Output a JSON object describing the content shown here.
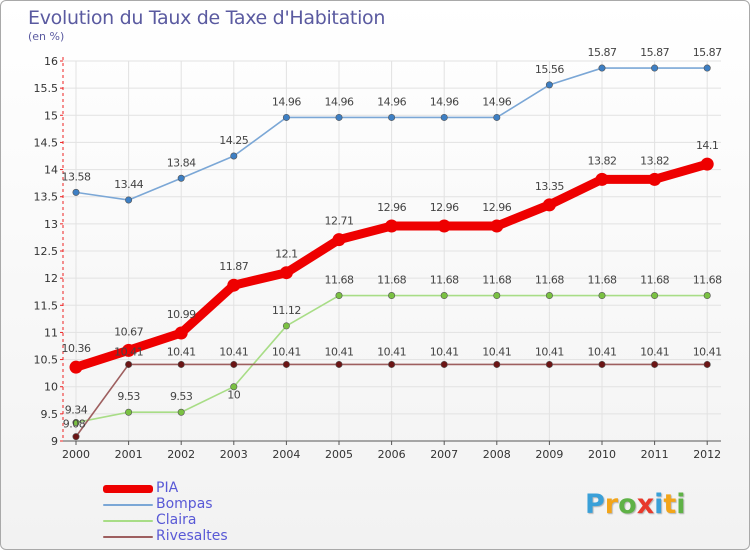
{
  "title": "Evolution du Taux de Taxe d'Habitation",
  "unit_label": "(en %)",
  "logo": {
    "letters": [
      "P",
      "r",
      "o",
      "x",
      "i",
      "t",
      "i"
    ],
    "colors": [
      "#3aa0d8",
      "#f2a51a",
      "#5fb246",
      "#e8392b",
      "#3aa0d8",
      "#f2a51a",
      "#5fb246"
    ]
  },
  "chart_data": {
    "type": "line",
    "title": "Evolution du Taux de Taxe d'Habitation",
    "ylabel": "(en %)",
    "xlabel": "",
    "ylim": [
      9,
      16
    ],
    "yticks": [
      "9",
      "9.5",
      "10",
      "10.5",
      "11",
      "11.5",
      "12",
      "12.5",
      "13",
      "13.5",
      "14",
      "14.5",
      "15",
      "15.5",
      "16"
    ],
    "ytick_values": [
      9,
      9.5,
      10,
      10.5,
      11,
      11.5,
      12,
      12.5,
      13,
      13.5,
      14,
      14.5,
      15,
      15.5,
      16
    ],
    "x": [
      "2000",
      "2001",
      "2002",
      "2003",
      "2004",
      "2005",
      "2006",
      "2007",
      "2008",
      "2009",
      "2010",
      "2011",
      "2012"
    ],
    "grid": true,
    "legend_position": "bottom-left",
    "series": [
      {
        "name": "Bompas",
        "color": "#7ba7d6",
        "marker": "#3d7fc4",
        "values": [
          13.58,
          13.44,
          13.84,
          14.25,
          14.96,
          14.96,
          14.96,
          14.96,
          14.96,
          15.56,
          15.87,
          15.87,
          15.87
        ],
        "labels": [
          "13.58",
          "13.44",
          "13.84",
          "14.25",
          "14.96",
          "14.96",
          "14.96",
          "14.96",
          "14.96",
          "15.56",
          "15.87",
          "15.87",
          "15.87"
        ]
      },
      {
        "name": "PIA",
        "color": "#ee0000",
        "marker": "#ee0000",
        "values": [
          10.36,
          10.67,
          10.99,
          11.87,
          12.1,
          12.71,
          12.96,
          12.96,
          12.96,
          13.35,
          13.82,
          13.82,
          14.1
        ],
        "labels": [
          "10.36",
          "10.67",
          "10.99",
          "11.87",
          "12.1",
          "12.71",
          "12.96",
          "12.96",
          "12.96",
          "13.35",
          "13.82",
          "13.82",
          "14.1"
        ]
      },
      {
        "name": "Claira",
        "color": "#a8dd86",
        "marker": "#7ac142",
        "values": [
          9.34,
          9.53,
          9.53,
          10,
          11.12,
          11.68,
          11.68,
          11.68,
          11.68,
          11.68,
          11.68,
          11.68,
          11.68
        ],
        "labels": [
          "9.34",
          "9.53",
          "9.53",
          "10",
          "11.12",
          "11.68",
          "11.68",
          "11.68",
          "11.68",
          "11.68",
          "11.68",
          "11.68",
          "11.68"
        ]
      },
      {
        "name": "Rivesaltes",
        "color": "#9e5f5f",
        "marker": "#6b1515",
        "values": [
          9.08,
          10.41,
          10.41,
          10.41,
          10.41,
          10.41,
          10.41,
          10.41,
          10.41,
          10.41,
          10.41,
          10.41,
          10.41
        ],
        "labels": [
          "9.08",
          "10.41",
          "10.41",
          "10.41",
          "10.41",
          "10.41",
          "10.41",
          "10.41",
          "10.41",
          "10.41",
          "10.41",
          "10.41",
          "10.41"
        ]
      }
    ],
    "legend": [
      {
        "name": "PIA",
        "color": "#ee0000"
      },
      {
        "name": "Bompas",
        "color": "#7ba7d6"
      },
      {
        "name": "Claira",
        "color": "#a8dd86"
      },
      {
        "name": "Rivesaltes",
        "color": "#9e5f5f"
      }
    ]
  }
}
